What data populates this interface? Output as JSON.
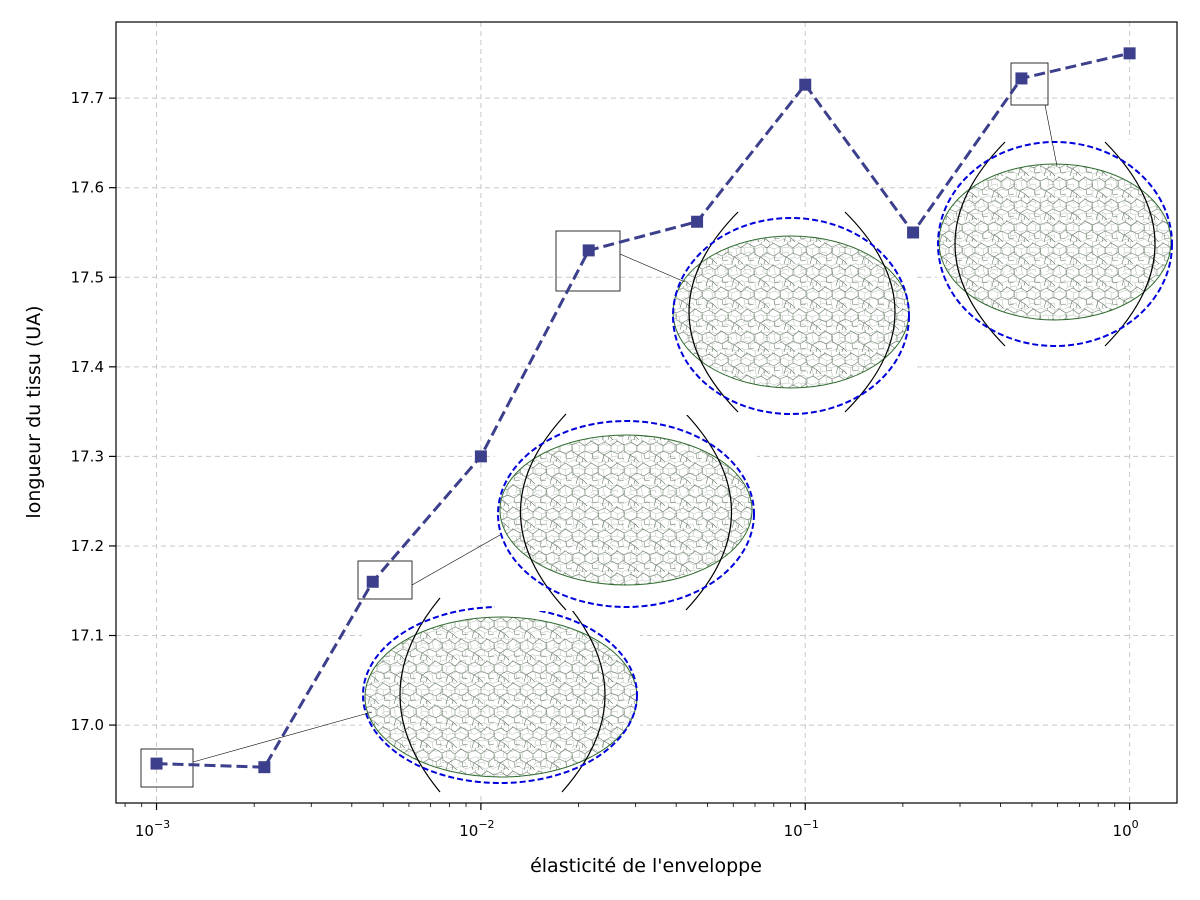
{
  "chart_data": {
    "type": "line",
    "xscale": "log",
    "xlabel": "élasticité de l'enveloppe",
    "ylabel": "longueur du tissu (UA)",
    "xlim": [
      0.00075,
      1.4
    ],
    "ylim": [
      16.913,
      17.785
    ],
    "grid": true,
    "x_ticks": [
      {
        "value": 0.001,
        "base": "10",
        "exp": "−3"
      },
      {
        "value": 0.01,
        "base": "10",
        "exp": "−2"
      },
      {
        "value": 0.1,
        "base": "10",
        "exp": "−1"
      },
      {
        "value": 1,
        "base": "10",
        "exp": "0"
      }
    ],
    "y_ticks": [
      17.0,
      17.1,
      17.2,
      17.3,
      17.4,
      17.5,
      17.6,
      17.7
    ],
    "series": [
      {
        "color": "#3c3f8c",
        "linestyle": "dashed",
        "marker": "square",
        "x": [
          0.001,
          0.00215,
          0.00464,
          0.01,
          0.0215,
          0.0464,
          0.1,
          0.215,
          0.464,
          1.0
        ],
        "y": [
          16.957,
          16.953,
          17.16,
          17.3,
          17.53,
          17.562,
          17.715,
          17.55,
          17.722,
          17.75
        ]
      }
    ],
    "annotations": [
      {
        "type": "tissue-inset",
        "point_index": 0
      },
      {
        "type": "tissue-inset",
        "point_index": 2
      },
      {
        "type": "tissue-inset",
        "point_index": 4
      },
      {
        "type": "tissue-inset",
        "point_index": 8
      }
    ],
    "colors": {
      "line": "#3c3f8c",
      "envelope_circle": "#0000dd",
      "envelope_arc": "#000000",
      "tissue_cells": "#2f6b2f"
    }
  }
}
